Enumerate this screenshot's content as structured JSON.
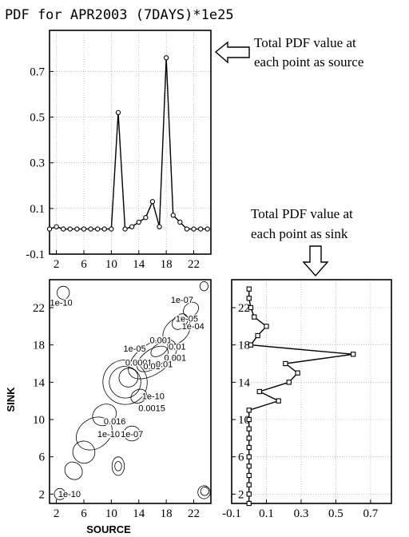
{
  "figure": {
    "title": "PDF for APR2003 (7DAYS)*1e25",
    "annotation_source": [
      "Total PDF value at",
      "each point as source"
    ],
    "annotation_sink": [
      "Total PDF value at",
      "each point as sink"
    ]
  },
  "chart_data": [
    {
      "type": "line",
      "panel": "source-profile",
      "marker": "circle",
      "x": [
        1,
        2,
        3,
        4,
        5,
        6,
        7,
        8,
        9,
        10,
        11,
        12,
        13,
        14,
        15,
        16,
        17,
        18,
        19,
        20,
        21,
        22,
        23,
        24
      ],
      "values": [
        0.01,
        0.02,
        0.01,
        0.01,
        0.01,
        0.01,
        0.01,
        0.01,
        0.01,
        0.01,
        0.52,
        0.01,
        0.02,
        0.04,
        0.06,
        0.13,
        0.02,
        0.76,
        0.07,
        0.04,
        0.01,
        0.01,
        0.01,
        0.01
      ],
      "xticks": [
        "2",
        "6",
        "10",
        "14",
        "18",
        "22"
      ],
      "yticks": [
        "-0.1",
        "0.1",
        "0.3",
        "0.5",
        "0.7"
      ],
      "xlim": [
        1,
        24.5
      ],
      "ylim": [
        -0.1,
        0.88
      ],
      "grid": true
    },
    {
      "type": "contour",
      "panel": "source-sink-map",
      "xlabel": "SOURCE",
      "ylabel": "SINK",
      "xticks": [
        "2",
        "6",
        "10",
        "14",
        "18",
        "22"
      ],
      "yticks": [
        "2",
        "6",
        "10",
        "14",
        "18",
        "22"
      ],
      "xlim": [
        1,
        24.5
      ],
      "ylim": [
        1,
        25
      ],
      "contour_labels": [
        {
          "text": "1e-10",
          "x": 2.7,
          "y": 22.2
        },
        {
          "text": "1e-07",
          "x": 20.3,
          "y": 22.5
        },
        {
          "text": "1e-05",
          "x": 21.0,
          "y": 20.5
        },
        {
          "text": "1e-04",
          "x": 21.9,
          "y": 19.7
        },
        {
          "text": "1e-05",
          "x": 13.4,
          "y": 17.3
        },
        {
          "text": "0.001",
          "x": 17.2,
          "y": 18.2
        },
        {
          "text": "0.01",
          "x": 19.6,
          "y": 17.5
        },
        {
          "text": "0.0001",
          "x": 14.0,
          "y": 15.8
        },
        {
          "text": "0.001",
          "x": 19.3,
          "y": 16.3
        },
        {
          "text": "0.01",
          "x": 15.9,
          "y": 15.4
        },
        {
          "text": "0.01",
          "x": 17.7,
          "y": 15.6
        },
        {
          "text": "1e-10",
          "x": 16.1,
          "y": 12.2
        },
        {
          "text": "0.0015",
          "x": 15.9,
          "y": 10.9
        },
        {
          "text": "0.016",
          "x": 10.5,
          "y": 9.5
        },
        {
          "text": "1e-10",
          "x": 9.6,
          "y": 8.1
        },
        {
          "text": "1e-07",
          "x": 13.0,
          "y": 8.1
        },
        {
          "text": "1e-10",
          "x": 3.9,
          "y": 1.7
        }
      ]
    },
    {
      "type": "line",
      "panel": "sink-profile",
      "orientation": "vertical",
      "marker": "square",
      "y": [
        1,
        2,
        3,
        4,
        5,
        6,
        7,
        8,
        9,
        10,
        11,
        12,
        13,
        14,
        15,
        16,
        17,
        18,
        19,
        20,
        21,
        22,
        23,
        24
      ],
      "values": [
        0.0,
        0.0,
        0.0,
        0.0,
        0.0,
        0.0,
        0.0,
        0.0,
        0.0,
        0.0,
        0.0,
        0.17,
        0.06,
        0.23,
        0.28,
        0.21,
        0.6,
        0.01,
        0.05,
        0.1,
        0.03,
        0.01,
        0.0,
        0.0
      ],
      "xticks": [
        "-0.1",
        "0.1",
        "0.3",
        "0.5",
        "0.7"
      ],
      "yticks": [
        "2",
        "6",
        "10",
        "14",
        "18",
        "22"
      ],
      "xlim": [
        -0.1,
        0.82
      ],
      "ylim": [
        1,
        25
      ],
      "grid": true
    }
  ]
}
